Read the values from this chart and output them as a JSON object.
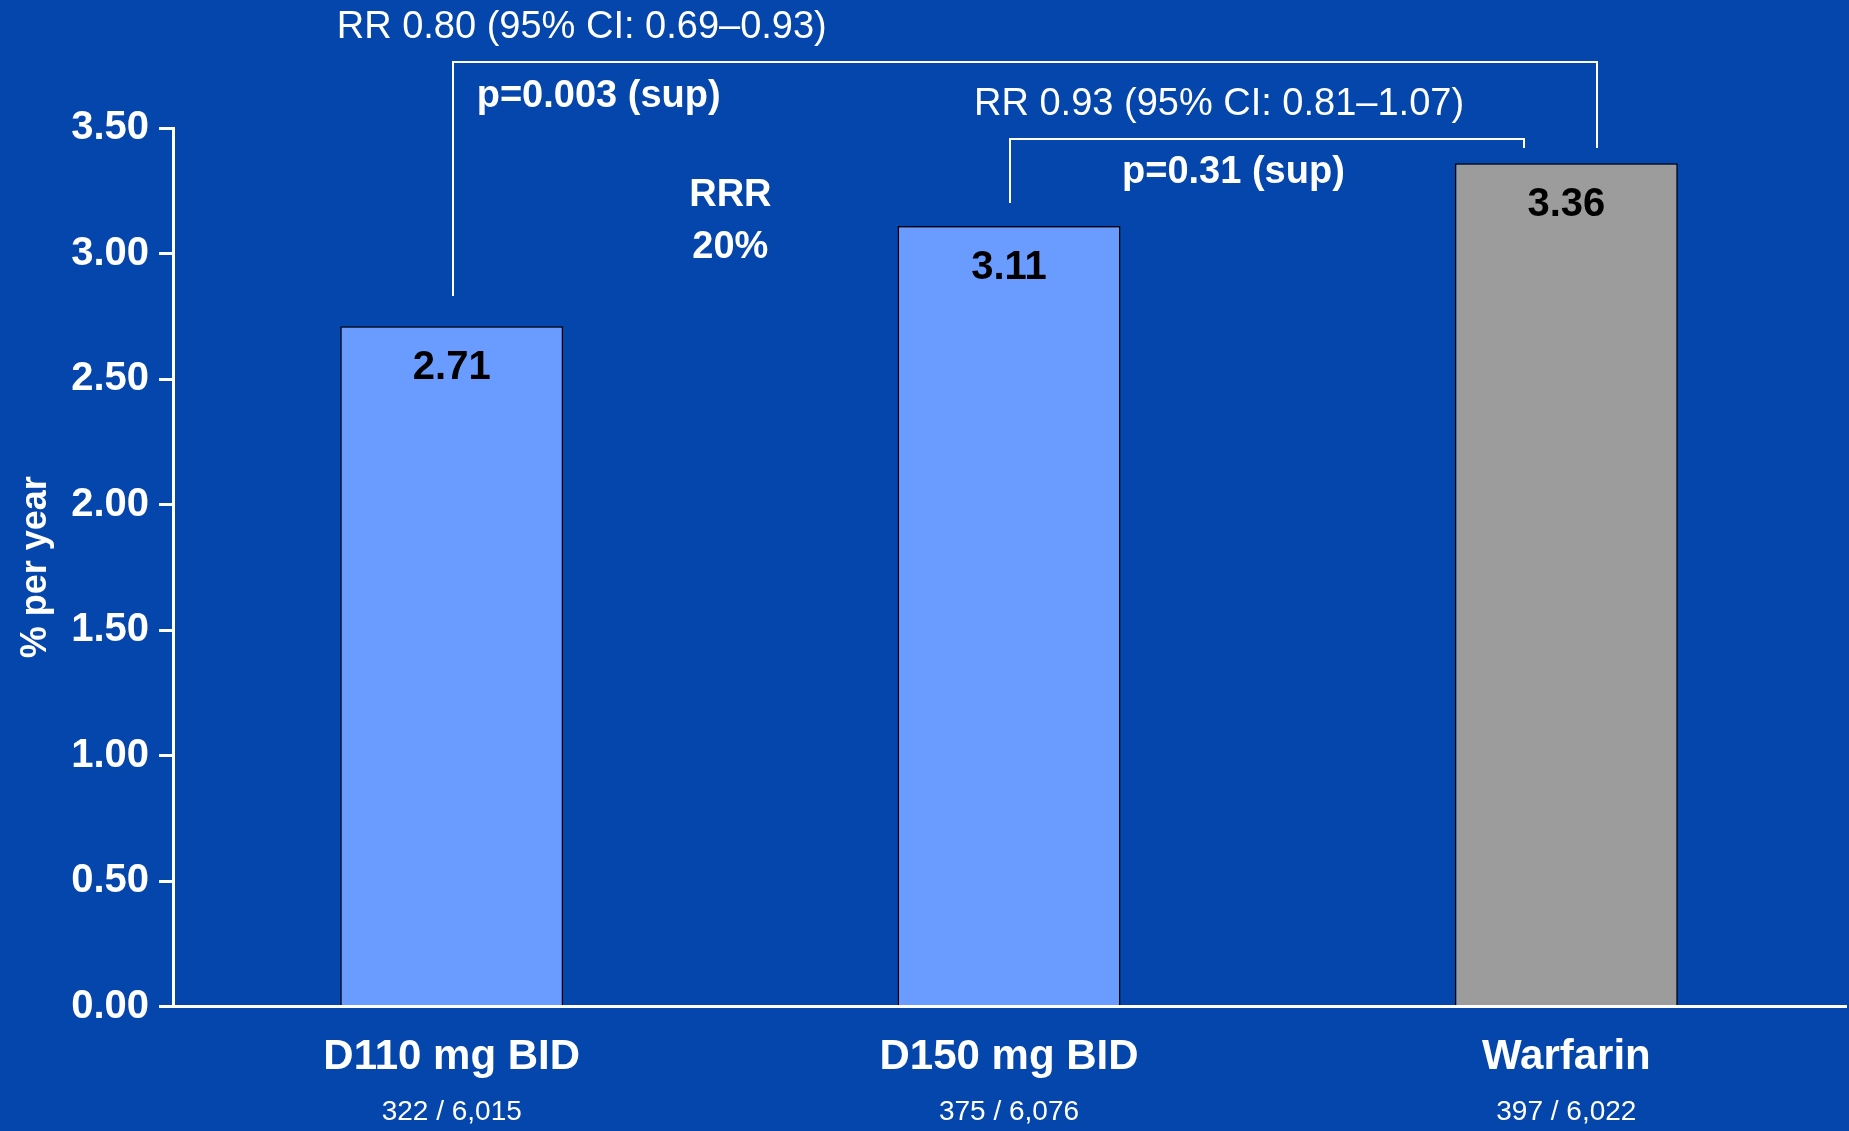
{
  "chart_data": {
    "type": "bar",
    "ylabel": "% per year",
    "categories": [
      "D110 mg BID",
      "D150 mg BID",
      "Warfarin"
    ],
    "values": [
      2.71,
      3.11,
      3.36
    ],
    "colors": [
      "#6a9cff",
      "#6a9cff",
      "#9c9c9c"
    ],
    "data_labels": true,
    "ylim": [
      0,
      3.5
    ],
    "yticks": [
      {
        "value": 0,
        "label": "0.00"
      },
      {
        "value": 0.5,
        "label": "0.50"
      },
      {
        "value": 1,
        "label": "1.00"
      },
      {
        "value": 1.5,
        "label": "1.50"
      },
      {
        "value": 2,
        "label": "2.00"
      },
      {
        "value": 2.5,
        "label": "2.50"
      },
      {
        "value": 3,
        "label": "3.00"
      },
      {
        "value": 3.5,
        "label": "3.50"
      }
    ],
    "grid": false,
    "legend": false,
    "annotations": [
      "322 / 6,015",
      "375 / 6,076",
      "397 / 6,022",
      "RR 0.80 (95% CI: 0.69–0.93)",
      "p=0.003 (sup)",
      "RRR",
      "20%",
      "RR 0.93 (95% CI: 0.81–1.07)",
      "p=0.31 (sup)"
    ]
  }
}
